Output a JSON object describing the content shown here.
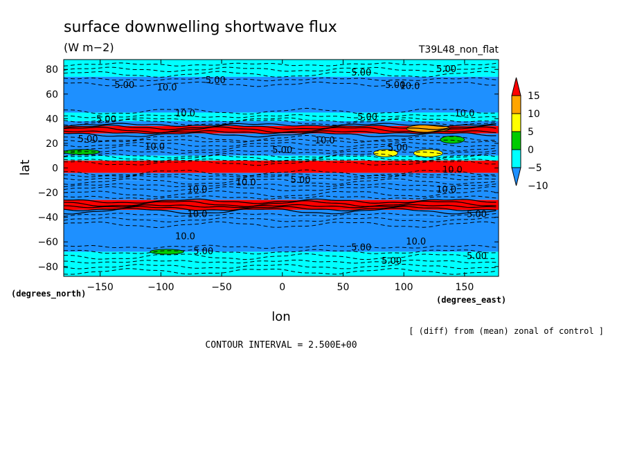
{
  "chart_data": {
    "type": "heatmap",
    "title": "surface downwelling shortwave flux",
    "units": "(W m−2)",
    "run_label": "T39L48_non_flat",
    "xlabel": "lon",
    "ylabel": "lat",
    "x_units": "(degrees_east)",
    "y_units": "(degrees_north)",
    "xlim": [
      -180,
      178
    ],
    "ylim": [
      -88,
      88
    ],
    "x_ticks": [
      "−150",
      "−100",
      "−50",
      "0",
      "50",
      "100",
      "150"
    ],
    "x_tick_values": [
      -150,
      -100,
      -50,
      0,
      50,
      100,
      150
    ],
    "y_ticks": [
      "80",
      "60",
      "40",
      "20",
      "0",
      "−20",
      "−40",
      "−60",
      "−80"
    ],
    "y_tick_values": [
      80,
      60,
      40,
      20,
      0,
      -20,
      -40,
      -60,
      -80
    ],
    "colorbar": {
      "labels": [
        "15",
        "10",
        "5",
        "0",
        "−5",
        "−10"
      ],
      "levels": [
        15,
        10,
        5,
        0,
        -5,
        -10
      ],
      "colors": [
        "#ff0000",
        "#ffa500",
        "#ffff00",
        "#00cc00",
        "#00ffff",
        "#1e90ff"
      ]
    },
    "bands": [
      {
        "lat": [
          74,
          88
        ],
        "color": "#00ffff"
      },
      {
        "lat": [
          45,
          74
        ],
        "color": "#1e90ff"
      },
      {
        "lat": [
          38,
          45
        ],
        "color": "#00ffff"
      },
      {
        "lat": [
          34,
          38
        ],
        "color": "#1e90ff"
      },
      {
        "lat": [
          28,
          34
        ],
        "color": "#ff0000"
      },
      {
        "lat": [
          22,
          28
        ],
        "color": "#1e90ff"
      },
      {
        "lat": [
          10,
          22
        ],
        "color": "#1e90ff"
      },
      {
        "lat": [
          6,
          10
        ],
        "color": "#00ffff"
      },
      {
        "lat": [
          -4,
          6
        ],
        "color": "#ff0000"
      },
      {
        "lat": [
          -10,
          -4
        ],
        "color": "#1e90ff"
      },
      {
        "lat": [
          -26,
          -10
        ],
        "color": "#1e90ff"
      },
      {
        "lat": [
          -34,
          -26
        ],
        "color": "#ff0000"
      },
      {
        "lat": [
          -40,
          -34
        ],
        "color": "#1e90ff"
      },
      {
        "lat": [
          -68,
          -40
        ],
        "color": "#1e90ff"
      },
      {
        "lat": [
          -88,
          -68
        ],
        "color": "#00ffff"
      }
    ],
    "patches": [
      {
        "lon": 85,
        "lat": 12,
        "w": 10,
        "h": 3,
        "color": "#ffff00"
      },
      {
        "lon": 120,
        "lat": 12,
        "w": 12,
        "h": 3,
        "color": "#ffff00"
      },
      {
        "lon": 140,
        "lat": 23,
        "w": 10,
        "h": 3,
        "color": "#00cc00"
      },
      {
        "lon": -165,
        "lat": 13,
        "w": 15,
        "h": 2,
        "color": "#00cc00"
      },
      {
        "lon": -95,
        "lat": -68,
        "w": 14,
        "h": 2,
        "color": "#00cc00"
      },
      {
        "lon": 120,
        "lat": 32,
        "w": 18,
        "h": 3,
        "color": "#ffa500"
      }
    ],
    "contour_labels": [
      {
        "text": "5.00",
        "lon": -130,
        "lat": 65
      },
      {
        "text": "10.0",
        "lon": -95,
        "lat": 63
      },
      {
        "text": "5.00",
        "lon": -55,
        "lat": 69
      },
      {
        "text": "5.00",
        "lon": 65,
        "lat": 75
      },
      {
        "text": "5.00",
        "lon": 93,
        "lat": 65
      },
      {
        "text": "10.0",
        "lon": 105,
        "lat": 64
      },
      {
        "text": "5.00",
        "lon": 135,
        "lat": 78
      },
      {
        "text": "10.0",
        "lon": -80,
        "lat": 42
      },
      {
        "text": "5.00",
        "lon": -145,
        "lat": 37
      },
      {
        "text": "10.0",
        "lon": 150,
        "lat": 42
      },
      {
        "text": "5.00",
        "lon": 70,
        "lat": 39
      },
      {
        "text": "5.00",
        "lon": -160,
        "lat": 21
      },
      {
        "text": "10.0",
        "lon": -105,
        "lat": 15
      },
      {
        "text": "10.0",
        "lon": 35,
        "lat": 20
      },
      {
        "text": "5.00",
        "lon": 0,
        "lat": 12
      },
      {
        "text": "5.00",
        "lon": 95,
        "lat": 14
      },
      {
        "text": "10.0",
        "lon": -30,
        "lat": -14
      },
      {
        "text": "5.00",
        "lon": 15,
        "lat": -12
      },
      {
        "text": "10.0",
        "lon": 140,
        "lat": -4
      },
      {
        "text": "10.0",
        "lon": -70,
        "lat": -20
      },
      {
        "text": "10.0",
        "lon": 135,
        "lat": -20
      },
      {
        "text": "10.0",
        "lon": -70,
        "lat": -40
      },
      {
        "text": "5.00",
        "lon": 160,
        "lat": -40
      },
      {
        "text": "10.0",
        "lon": -80,
        "lat": -58
      },
      {
        "text": "10.0",
        "lon": 110,
        "lat": -62
      },
      {
        "text": "5.00",
        "lon": -65,
        "lat": -70
      },
      {
        "text": "5.00",
        "lon": 65,
        "lat": -67
      },
      {
        "text": "5.00",
        "lon": 90,
        "lat": -78
      },
      {
        "text": "5.00",
        "lon": 160,
        "lat": -74
      }
    ],
    "footnote": "[ (diff) from (mean) zonal of control ]",
    "contour_interval": "CONTOUR INTERVAL = 2.500E+00"
  }
}
